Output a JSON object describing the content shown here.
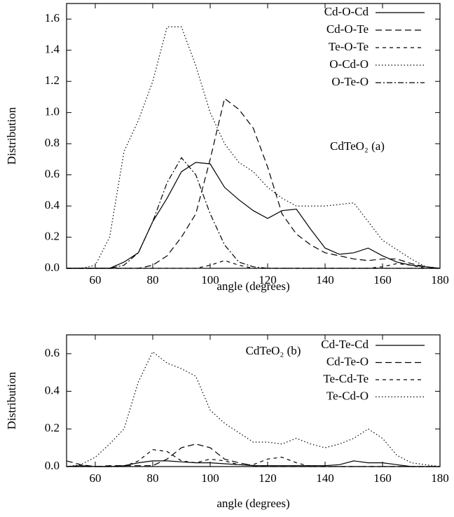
{
  "chart_data": [
    {
      "type": "line",
      "annotation": "CdTeO₂ (a)",
      "x_label": "angle (degrees)",
      "y_label": "Distribution",
      "x": [
        50,
        55,
        60,
        65,
        70,
        75,
        80,
        85,
        90,
        95,
        100,
        105,
        110,
        115,
        120,
        125,
        130,
        135,
        140,
        145,
        150,
        155,
        160,
        165,
        170,
        175,
        180
      ],
      "xlim": [
        50,
        180
      ],
      "xticks": [
        60,
        80,
        100,
        120,
        140,
        160,
        180
      ],
      "ylim": [
        0,
        1.7
      ],
      "yticks": [
        {
          "value": 0,
          "label": "0.0"
        },
        0.2,
        0.4,
        0.6,
        0.8,
        {
          "value": 1,
          "label": "1.0"
        },
        1.2,
        1.4,
        1.6
      ],
      "grid": false,
      "legend": "upper-right",
      "series": [
        {
          "name": "Cd-O-Cd",
          "color": "#000000",
          "dash": "solid",
          "values": [
            0,
            0,
            0,
            0,
            0.04,
            0.1,
            0.3,
            0.45,
            0.62,
            0.68,
            0.67,
            0.52,
            0.44,
            0.37,
            0.32,
            0.37,
            0.38,
            0.25,
            0.13,
            0.09,
            0.1,
            0.13,
            0.08,
            0.04,
            0.02,
            0.01,
            0
          ]
        },
        {
          "name": "Cd-O-Te",
          "color": "#000000",
          "dash": "long-dash",
          "values": [
            0,
            0,
            0,
            0,
            0,
            0,
            0.02,
            0.08,
            0.2,
            0.35,
            0.7,
            1.09,
            1.02,
            0.9,
            0.65,
            0.35,
            0.22,
            0.15,
            0.1,
            0.08,
            0.06,
            0.05,
            0.06,
            0.06,
            0.03,
            0.01,
            0
          ]
        },
        {
          "name": "Te-O-Te",
          "color": "#000000",
          "dash": "short-dash",
          "values": [
            0,
            0,
            0,
            0,
            0,
            0,
            0,
            0,
            0,
            0,
            0.02,
            0.05,
            0.02,
            0,
            0,
            0,
            0,
            0,
            0,
            0,
            0,
            0,
            0.01,
            0.03,
            0.02,
            0,
            0
          ]
        },
        {
          "name": "O-Cd-O",
          "color": "#000000",
          "dash": "dotted",
          "values": [
            0,
            0,
            0.02,
            0.2,
            0.75,
            0.95,
            1.2,
            1.55,
            1.55,
            1.3,
            1.0,
            0.8,
            0.68,
            0.62,
            0.52,
            0.45,
            0.4,
            0.4,
            0.4,
            0.41,
            0.42,
            0.3,
            0.18,
            0.12,
            0.06,
            0.01,
            0
          ]
        },
        {
          "name": "O-Te-O",
          "color": "#000000",
          "dash": "dash-dot",
          "values": [
            0,
            0,
            0,
            0,
            0.02,
            0.1,
            0.3,
            0.55,
            0.71,
            0.6,
            0.35,
            0.15,
            0.04,
            0.01,
            0,
            0,
            0,
            0,
            0,
            0,
            0,
            0,
            0,
            0,
            0,
            0,
            0
          ]
        }
      ]
    },
    {
      "type": "line",
      "annotation": "CdTeO₂ (b)",
      "x_label": "angle (degrees)",
      "y_label": "Distribution",
      "x": [
        50,
        55,
        60,
        65,
        70,
        75,
        80,
        85,
        90,
        95,
        100,
        105,
        110,
        115,
        120,
        125,
        130,
        135,
        140,
        145,
        150,
        155,
        160,
        165,
        170,
        175,
        180
      ],
      "xlim": [
        50,
        180
      ],
      "xticks": [
        60,
        80,
        100,
        120,
        140,
        160,
        180
      ],
      "ylim": [
        0,
        0.7
      ],
      "yticks": [
        {
          "value": 0,
          "label": "0.0"
        },
        0.2,
        0.4,
        0.6
      ],
      "grid": false,
      "legend": "upper-right",
      "series": [
        {
          "name": "Cd-Te-Cd",
          "color": "#000000",
          "dash": "solid",
          "values": [
            0,
            0.005,
            0,
            0,
            0.005,
            0.02,
            0.03,
            0.03,
            0.025,
            0.02,
            0.02,
            0.015,
            0.01,
            0.005,
            0.005,
            0.005,
            0.005,
            0.005,
            0.005,
            0.01,
            0.03,
            0.02,
            0.02,
            0.01,
            0,
            0,
            0
          ]
        },
        {
          "name": "Cd-Te-O",
          "color": "#000000",
          "dash": "long-dash",
          "values": [
            0.03,
            0.01,
            0,
            0.005,
            0.005,
            0.005,
            0.005,
            0.04,
            0.1,
            0.12,
            0.1,
            0.04,
            0.02,
            0.005,
            0,
            0,
            0,
            0,
            0,
            0,
            0,
            0,
            0,
            0,
            0,
            0,
            0
          ]
        },
        {
          "name": "Te-Cd-Te",
          "color": "#000000",
          "dash": "short-dash",
          "values": [
            0,
            0,
            0,
            0,
            0,
            0.03,
            0.09,
            0.08,
            0.03,
            0.02,
            0.04,
            0.03,
            0.01,
            0.01,
            0.04,
            0.05,
            0.02,
            0,
            0,
            0,
            0,
            0,
            0,
            0,
            0,
            0,
            0
          ]
        },
        {
          "name": "Te-Cd-O",
          "color": "#000000",
          "dash": "dotted",
          "values": [
            0,
            0.01,
            0.05,
            0.12,
            0.2,
            0.45,
            0.61,
            0.55,
            0.52,
            0.48,
            0.3,
            0.23,
            0.18,
            0.13,
            0.13,
            0.12,
            0.15,
            0.12,
            0.1,
            0.12,
            0.15,
            0.2,
            0.15,
            0.06,
            0.02,
            0.01,
            0
          ]
        }
      ]
    }
  ]
}
